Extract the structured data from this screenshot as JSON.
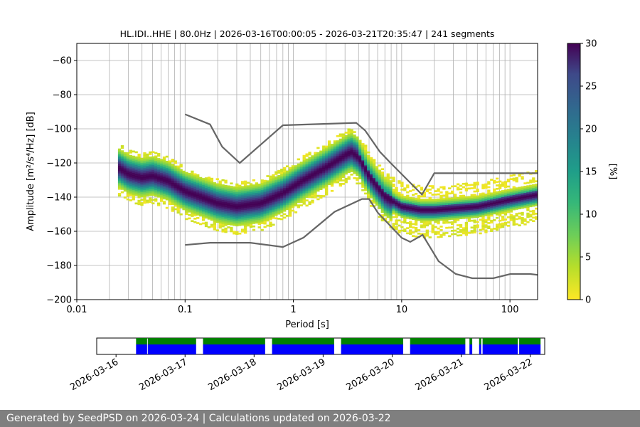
{
  "chart_data": {
    "type": "heatmap",
    "title": "HL.IDI..HHE | 80.0Hz | 2026-03-16T00:00:05 - 2026-03-21T20:35:47 | 241 segments",
    "xlabel": "Period [s]",
    "ylabel": "Amplitude [m²/s⁴/Hz] [dB]",
    "x_scale": "log",
    "xlim": [
      0.01,
      180
    ],
    "ylim": [
      -200,
      -50
    ],
    "x_ticks": [
      0.01,
      0.1,
      1,
      10,
      100
    ],
    "x_tick_labels": [
      "0.01",
      "0.1",
      "1",
      "10",
      "100"
    ],
    "y_ticks": [
      -200,
      -180,
      -160,
      -140,
      -120,
      -100,
      -80,
      -60
    ],
    "y_tick_labels": [
      "−200",
      "−180",
      "−160",
      "−140",
      "−120",
      "−100",
      "−80",
      "−60"
    ],
    "grid": true,
    "colorbar": {
      "label": "[%]",
      "range": [
        0,
        30
      ],
      "ticks": [
        0,
        5,
        10,
        15,
        20,
        25,
        30
      ],
      "tick_labels": [
        "0",
        "5",
        "10",
        "15",
        "20",
        "25",
        "30"
      ],
      "colormap": "viridis_r"
    },
    "mode_curve": {
      "period": [
        0.024,
        0.03,
        0.04,
        0.05,
        0.07,
        0.1,
        0.15,
        0.2,
        0.3,
        0.5,
        0.8,
        1.2,
        2,
        3,
        3.4,
        4,
        5,
        7,
        10,
        15,
        20,
        50,
        100,
        180
      ],
      "db": [
        -123,
        -127,
        -129,
        -128,
        -131,
        -137,
        -141,
        -144,
        -146,
        -144,
        -138,
        -131,
        -123,
        -116,
        -114,
        -117,
        -128,
        -140,
        -146,
        -148,
        -148,
        -146,
        -142,
        -139
      ]
    },
    "nhnm": {
      "period": [
        0.1,
        0.17,
        0.22,
        0.32,
        0.8,
        3.8,
        4.6,
        6.3,
        7.9,
        15.4,
        20,
        354.8
      ],
      "db": [
        -91.5,
        -97.4,
        -110.5,
        -120,
        -97.9,
        -96.5,
        -101,
        -113.5,
        -120,
        -138.5,
        -126,
        -126
      ]
    },
    "nlnm": {
      "period": [
        0.1,
        0.17,
        0.4,
        0.8,
        1.24,
        2.4,
        4.3,
        5,
        6,
        10,
        12,
        15.6,
        21.9,
        31.6,
        45,
        70,
        101,
        154,
        328
      ],
      "db": [
        -168,
        -166.7,
        -166.7,
        -169.2,
        -163.7,
        -148.6,
        -141.1,
        -141.1,
        -149,
        -163.8,
        -166.2,
        -162.1,
        -177.5,
        -185,
        -187.5,
        -187.5,
        -185,
        -185,
        -187.5
      ]
    },
    "timeline": {
      "x_ticks": [
        "2026-03-16",
        "2026-03-17",
        "2026-03-18",
        "2026-03-19",
        "2026-03-20",
        "2026-03-21",
        "2026-03-22"
      ],
      "range_days": [
        -0.28,
        6.21
      ],
      "segments_days": [
        [
          0.29,
          0.45
        ],
        [
          0.46,
          1.16
        ],
        [
          1.26,
          2.16
        ],
        [
          2.26,
          3.16
        ],
        [
          3.26,
          4.16
        ],
        [
          4.26,
          5.06
        ],
        [
          5.12,
          5.16
        ],
        [
          5.26,
          5.29
        ],
        [
          5.31,
          5.82
        ],
        [
          5.84,
          6.15
        ]
      ],
      "green_color": "#008000",
      "blue_color": "#0000ff"
    }
  },
  "footer": {
    "text": "Generated by SeedPSD on 2026-03-24 | Calculations updated on 2026-03-22"
  }
}
